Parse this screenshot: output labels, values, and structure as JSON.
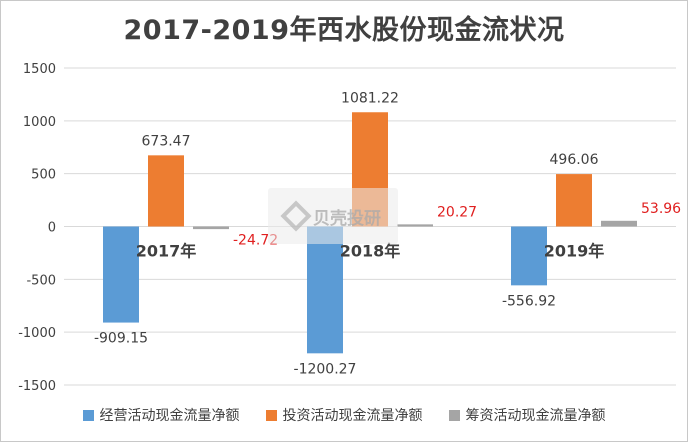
{
  "colors": {
    "operating": "#5b9bd5",
    "investing": "#ed7d31",
    "financing": "#a5a5a5",
    "label_default": "#404040",
    "label_accent": "#e02020"
  },
  "watermark": {
    "text": "贝壳投研"
  },
  "chart_data": {
    "type": "bar",
    "title": "2017-2019年西水股份现金流状况",
    "categories": [
      "2017年",
      "2018年",
      "2019年"
    ],
    "ylim": [
      -1500,
      1500
    ],
    "yticks": [
      1500,
      1000,
      500,
      0,
      -500,
      -1000,
      -1500
    ],
    "grid": true,
    "legend_position": "bottom",
    "series": [
      {
        "name": "经营活动现金流量净额",
        "values": [
          -909.15,
          -1200.27,
          -556.92
        ],
        "labels": [
          "-909.15",
          "-1200.27",
          "-556.92"
        ]
      },
      {
        "name": "投资活动现金流量净额",
        "values": [
          673.47,
          1081.22,
          496.06
        ],
        "labels": [
          "673.47",
          "1081.22",
          "496.06"
        ]
      },
      {
        "name": "筹资活动现金流量净额",
        "values": [
          -24.72,
          20.27,
          53.96
        ],
        "labels": [
          "-24.72",
          "20.27",
          "53.96"
        ]
      }
    ]
  }
}
